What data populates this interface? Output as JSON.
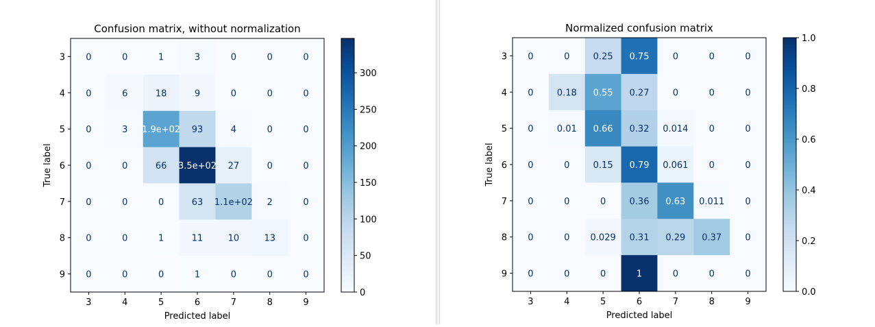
{
  "chart_data": [
    {
      "type": "heatmap",
      "title": "Confusion matrix, without normalization",
      "xlabel": "Predicted label",
      "ylabel": "True label",
      "x_tick_labels": [
        "3",
        "4",
        "5",
        "6",
        "7",
        "8",
        "9"
      ],
      "y_tick_labels": [
        "3",
        "4",
        "5",
        "6",
        "7",
        "8",
        "9"
      ],
      "values": [
        [
          0,
          0,
          1,
          3,
          0,
          0,
          0
        ],
        [
          0,
          6,
          18,
          9,
          0,
          0,
          0
        ],
        [
          0,
          3,
          190,
          93,
          4,
          0,
          0
        ],
        [
          0,
          0,
          66,
          350,
          27,
          0,
          0
        ],
        [
          0,
          0,
          0,
          63,
          110,
          2,
          0
        ],
        [
          0,
          0,
          1,
          11,
          10,
          13,
          0
        ],
        [
          0,
          0,
          0,
          1,
          0,
          0,
          0
        ]
      ],
      "cell_labels": [
        [
          "0",
          "0",
          "1",
          "3",
          "0",
          "0",
          "0"
        ],
        [
          "0",
          "6",
          "18",
          "9",
          "0",
          "0",
          "0"
        ],
        [
          "0",
          "3",
          "1.9e+02",
          "93",
          "4",
          "0",
          "0"
        ],
        [
          "0",
          "0",
          "66",
          "3.5e+02",
          "27",
          "0",
          "0"
        ],
        [
          "0",
          "0",
          "0",
          "63",
          "1.1e+02",
          "2",
          "0"
        ],
        [
          "0",
          "0",
          "1",
          "11",
          "10",
          "13",
          "0"
        ],
        [
          "0",
          "0",
          "0",
          "1",
          "0",
          "0",
          "0"
        ]
      ],
      "colorbar": {
        "min": 0,
        "max": 347,
        "ticks": [
          0,
          50,
          100,
          150,
          200,
          250,
          300
        ],
        "tick_labels": [
          "0",
          "50",
          "100",
          "150",
          "200",
          "250",
          "300"
        ]
      },
      "colormap": "Blues",
      "grid": false
    },
    {
      "type": "heatmap",
      "title": "Normalized confusion matrix",
      "xlabel": "Predicted label",
      "ylabel": "True label",
      "x_tick_labels": [
        "3",
        "4",
        "5",
        "6",
        "7",
        "8",
        "9"
      ],
      "y_tick_labels": [
        "3",
        "4",
        "5",
        "6",
        "7",
        "8",
        "9"
      ],
      "values": [
        [
          0,
          0,
          0.25,
          0.75,
          0,
          0,
          0
        ],
        [
          0,
          0.18,
          0.55,
          0.27,
          0,
          0,
          0
        ],
        [
          0,
          0.01,
          0.66,
          0.32,
          0.014,
          0,
          0
        ],
        [
          0,
          0,
          0.15,
          0.79,
          0.061,
          0,
          0
        ],
        [
          0,
          0,
          0,
          0.36,
          0.63,
          0.011,
          0
        ],
        [
          0,
          0,
          0.029,
          0.31,
          0.29,
          0.37,
          0
        ],
        [
          0,
          0,
          0,
          1,
          0,
          0,
          0
        ]
      ],
      "cell_labels": [
        [
          "0",
          "0",
          "0.25",
          "0.75",
          "0",
          "0",
          "0"
        ],
        [
          "0",
          "0.18",
          "0.55",
          "0.27",
          "0",
          "0",
          "0"
        ],
        [
          "0",
          "0.01",
          "0.66",
          "0.32",
          "0.014",
          "0",
          "0"
        ],
        [
          "0",
          "0",
          "0.15",
          "0.79",
          "0.061",
          "0",
          "0"
        ],
        [
          "0",
          "0",
          "0",
          "0.36",
          "0.63",
          "0.011",
          "0"
        ],
        [
          "0",
          "0",
          "0.029",
          "0.31",
          "0.29",
          "0.37",
          "0"
        ],
        [
          "0",
          "0",
          "0",
          "1",
          "0",
          "0",
          "0"
        ]
      ],
      "colorbar": {
        "min": 0,
        "max": 1,
        "ticks": [
          0,
          0.2,
          0.4,
          0.6,
          0.8,
          1.0
        ],
        "tick_labels": [
          "0.0",
          "0.2",
          "0.4",
          "0.6",
          "0.8",
          "1.0"
        ]
      },
      "colormap": "Blues",
      "grid": false
    }
  ]
}
